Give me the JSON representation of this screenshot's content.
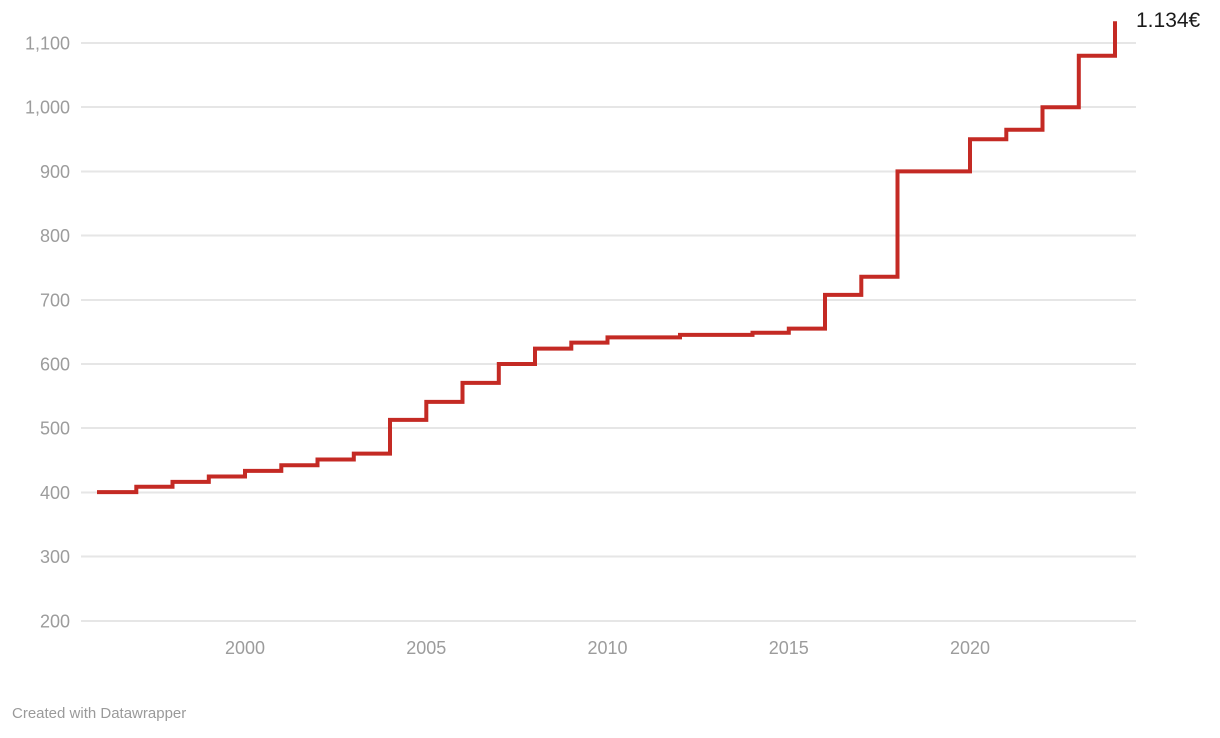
{
  "footer": {
    "attribution": "Created with Datawrapper"
  },
  "chart_data": {
    "type": "line",
    "interpolation": "step",
    "title": "",
    "xlabel": "",
    "ylabel": "",
    "unit": "€",
    "end_label": "1.134€",
    "line_color": "#c42a24",
    "grid": "horizontal",
    "legend": "none",
    "xlim": [
      1995.9,
      2024.6
    ],
    "ylim": [
      200,
      1167
    ],
    "x_ticks": [
      2000,
      2005,
      2010,
      2015,
      2020
    ],
    "x_tick_labels": [
      "2000",
      "2005",
      "2010",
      "2015",
      "2020"
    ],
    "y_ticks": [
      200,
      300,
      400,
      500,
      600,
      700,
      800,
      900,
      1000,
      1100
    ],
    "y_tick_labels": [
      "200",
      "300",
      "400",
      "500",
      "600",
      "700",
      "800",
      "900",
      "1,000",
      "1,100"
    ],
    "x": [
      1996,
      1997,
      1998,
      1999,
      2000,
      2001,
      2002,
      2003,
      2004,
      2005,
      2006,
      2007,
      2008,
      2009,
      2010,
      2011,
      2012,
      2013,
      2014,
      2015,
      2016,
      2017,
      2018,
      2019,
      2020,
      2021,
      2022,
      2023,
      2024
    ],
    "values": [
      400.45,
      408.93,
      416.32,
      424.8,
      433.45,
      442.2,
      451.2,
      460.5,
      513,
      540.9,
      570.6,
      600,
      624,
      633.3,
      641.4,
      641.4,
      645.3,
      645.3,
      648.6,
      655.2,
      707.7,
      735.9,
      900,
      900,
      950,
      965,
      1000,
      1080,
      1134
    ]
  }
}
